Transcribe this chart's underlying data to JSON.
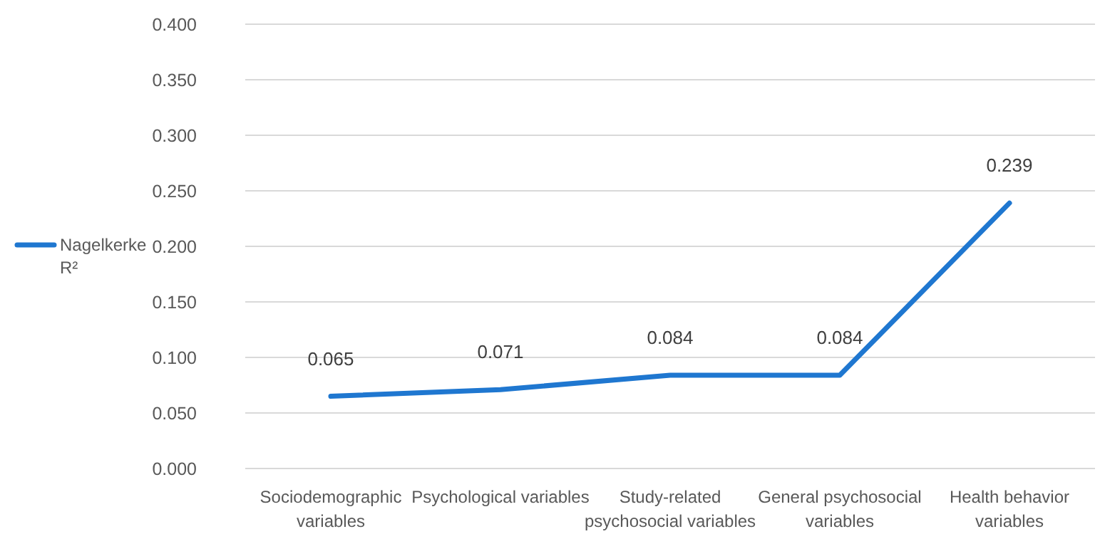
{
  "chart_data": {
    "type": "line",
    "categories": [
      "Sociodemographic variables",
      "Psychological variables",
      "Study-related psychosocial variables",
      "General psychosocial variables",
      "Health behavior variables"
    ],
    "series": [
      {
        "name": "Nagelkerke R²",
        "color": "#1f77d0",
        "values": [
          0.065,
          0.071,
          0.084,
          0.084,
          0.239
        ]
      }
    ],
    "ylim": [
      0,
      0.4
    ],
    "yticks": [
      {
        "value": 0,
        "label": "0.000"
      },
      {
        "value": 0.05,
        "label": "0.050"
      },
      {
        "value": 0.1,
        "label": "0.100"
      },
      {
        "value": 0.15,
        "label": "0.150"
      },
      {
        "value": 0.2,
        "label": "0.200"
      },
      {
        "value": 0.25,
        "label": "0.250"
      },
      {
        "value": 0.3,
        "label": "0.300"
      },
      {
        "value": 0.35,
        "label": "0.350"
      },
      {
        "value": 0.4,
        "label": "0.400"
      }
    ],
    "grid": "y",
    "legend": "left",
    "data_labels": true,
    "marker": "none",
    "line_style": "solid"
  }
}
